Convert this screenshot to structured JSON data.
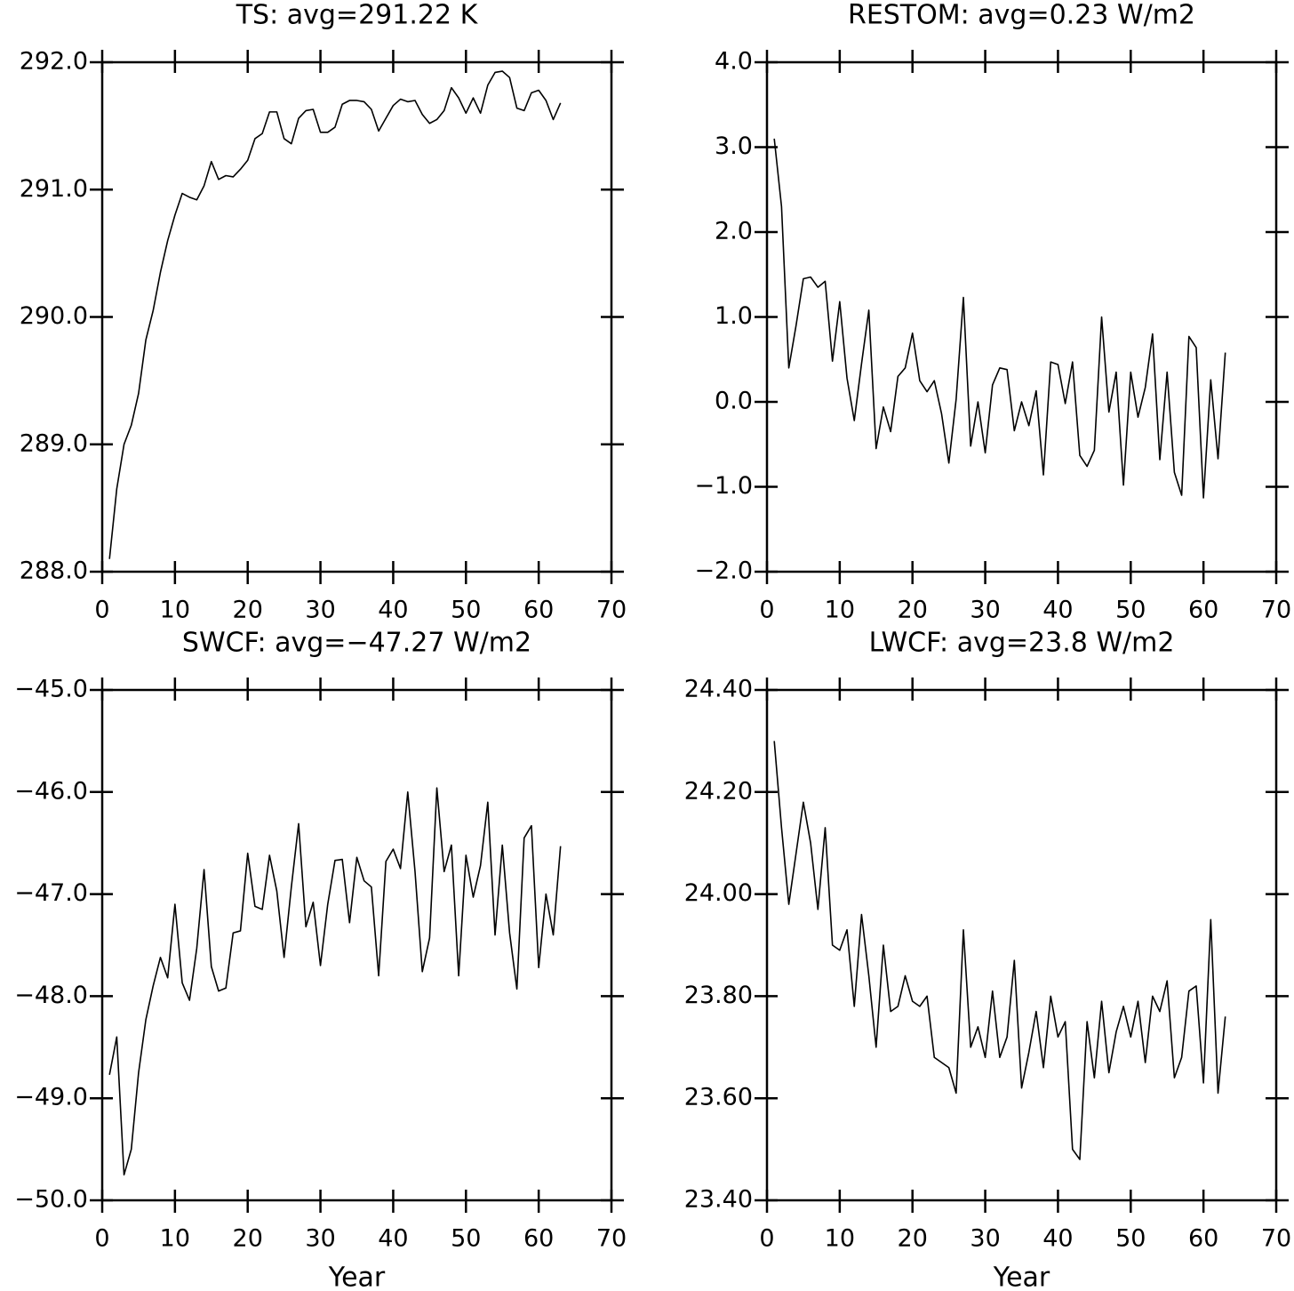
{
  "chart_data": [
    {
      "type": "line",
      "title": "TS: avg=291.22 K",
      "color": "#000000",
      "x": [
        1,
        2,
        3,
        4,
        5,
        6,
        7,
        8,
        9,
        10,
        11,
        12,
        13,
        14,
        15,
        16,
        17,
        18,
        19,
        20,
        21,
        22,
        23,
        24,
        25,
        26,
        27,
        28,
        29,
        30,
        31,
        32,
        33,
        34,
        35,
        36,
        37,
        38,
        39,
        40,
        41,
        42,
        43,
        44,
        45,
        46,
        47,
        48,
        49,
        50,
        51,
        52,
        53,
        54,
        55,
        56,
        57,
        58,
        59,
        60,
        61,
        62,
        63
      ],
      "values": [
        288.1,
        288.65,
        289.0,
        289.15,
        289.4,
        289.82,
        290.05,
        290.35,
        290.6,
        290.8,
        290.97,
        290.94,
        290.92,
        291.03,
        291.22,
        291.08,
        291.11,
        291.1,
        291.16,
        291.23,
        291.4,
        291.44,
        291.61,
        291.61,
        291.4,
        291.36,
        291.56,
        291.62,
        291.63,
        291.45,
        291.45,
        291.49,
        291.67,
        291.7,
        291.7,
        291.69,
        291.63,
        291.46,
        291.56,
        291.66,
        291.71,
        291.69,
        291.7,
        291.59,
        291.52,
        291.55,
        291.62,
        291.8,
        291.72,
        291.6,
        291.72,
        291.6,
        291.82,
        291.92,
        291.93,
        291.88,
        291.64,
        291.62,
        291.76,
        291.78,
        291.7,
        291.55,
        291.68
      ],
      "xlim": [
        0,
        70
      ],
      "xticks": [
        0,
        10,
        20,
        30,
        40,
        50,
        60,
        70
      ],
      "ylim": [
        288,
        292
      ],
      "yticks": [
        {
          "value": 288,
          "label": "288.0"
        },
        {
          "value": 289,
          "label": "289.0"
        },
        {
          "value": 290,
          "label": "290.0"
        },
        {
          "value": 291,
          "label": "291.0"
        },
        {
          "value": 292,
          "label": "292.0"
        }
      ]
    },
    {
      "type": "line",
      "title": "RESTOM: avg=0.23 W/m2",
      "color": "#000000",
      "x": [
        1,
        2,
        3,
        4,
        5,
        6,
        7,
        8,
        9,
        10,
        11,
        12,
        13,
        14,
        15,
        16,
        17,
        18,
        19,
        20,
        21,
        22,
        23,
        24,
        25,
        26,
        27,
        28,
        29,
        30,
        31,
        32,
        33,
        34,
        35,
        36,
        37,
        38,
        39,
        40,
        41,
        42,
        43,
        44,
        45,
        46,
        47,
        48,
        49,
        50,
        51,
        52,
        53,
        54,
        55,
        56,
        57,
        58,
        59,
        60,
        61,
        62,
        63
      ],
      "values": [
        3.1,
        2.3,
        0.4,
        0.9,
        1.45,
        1.47,
        1.35,
        1.42,
        0.48,
        1.18,
        0.28,
        -0.22,
        0.45,
        1.08,
        -0.55,
        -0.06,
        -0.35,
        0.3,
        0.4,
        0.81,
        0.25,
        0.12,
        0.25,
        -0.14,
        -0.72,
        0.03,
        1.23,
        -0.52,
        0.0,
        -0.6,
        0.2,
        0.4,
        0.38,
        -0.34,
        0.0,
        -0.28,
        0.13,
        -0.86,
        0.47,
        0.44,
        -0.02,
        0.47,
        -0.63,
        -0.76,
        -0.57,
        1.0,
        -0.12,
        0.35,
        -0.98,
        0.35,
        -0.18,
        0.17,
        0.8,
        -0.68,
        0.35,
        -0.83,
        -1.1,
        0.77,
        0.64,
        -1.13,
        0.26,
        -0.67,
        0.58
      ],
      "xlim": [
        0,
        70
      ],
      "xticks": [
        0,
        10,
        20,
        30,
        40,
        50,
        60,
        70
      ],
      "ylim": [
        -2,
        4
      ],
      "yticks": [
        {
          "value": -2,
          "label": "−2.0"
        },
        {
          "value": -1,
          "label": "−1.0"
        },
        {
          "value": 0,
          "label": "0.0"
        },
        {
          "value": 1,
          "label": "1.0"
        },
        {
          "value": 2,
          "label": "2.0"
        },
        {
          "value": 3,
          "label": "3.0"
        },
        {
          "value": 4,
          "label": "4.0"
        }
      ]
    },
    {
      "type": "line",
      "title": "SWCF: avg=−47.27 W/m2",
      "xlabel": "Year",
      "color": "#000000",
      "x": [
        1,
        2,
        3,
        4,
        5,
        6,
        7,
        8,
        9,
        10,
        11,
        12,
        13,
        14,
        15,
        16,
        17,
        18,
        19,
        20,
        21,
        22,
        23,
        24,
        25,
        26,
        27,
        28,
        29,
        30,
        31,
        32,
        33,
        34,
        35,
        36,
        37,
        38,
        39,
        40,
        41,
        42,
        43,
        44,
        45,
        46,
        47,
        48,
        49,
        50,
        51,
        52,
        53,
        54,
        55,
        56,
        57,
        58,
        59,
        60,
        61,
        62,
        63
      ],
      "values": [
        -48.77,
        -48.4,
        -49.75,
        -49.5,
        -48.75,
        -48.23,
        -47.9,
        -47.62,
        -47.82,
        -47.1,
        -47.87,
        -48.04,
        -47.53,
        -46.76,
        -47.71,
        -47.95,
        -47.92,
        -47.38,
        -47.36,
        -46.6,
        -47.12,
        -47.15,
        -46.62,
        -46.97,
        -47.62,
        -46.93,
        -46.31,
        -47.32,
        -47.08,
        -47.7,
        -47.1,
        -46.67,
        -46.66,
        -47.28,
        -46.64,
        -46.87,
        -46.93,
        -47.8,
        -46.68,
        -46.56,
        -46.75,
        -46.0,
        -46.78,
        -47.76,
        -47.43,
        -45.96,
        -46.78,
        -46.52,
        -47.8,
        -46.62,
        -47.03,
        -46.72,
        -46.1,
        -47.4,
        -46.52,
        -47.38,
        -47.93,
        -46.45,
        -46.33,
        -47.72,
        -47.0,
        -47.4,
        -46.53
      ],
      "xlim": [
        0,
        70
      ],
      "xticks": [
        0,
        10,
        20,
        30,
        40,
        50,
        60,
        70
      ],
      "ylim": [
        -50,
        -45
      ],
      "yticks": [
        {
          "value": -50,
          "label": "−50.0"
        },
        {
          "value": -49,
          "label": "−49.0"
        },
        {
          "value": -48,
          "label": "−48.0"
        },
        {
          "value": -47,
          "label": "−47.0"
        },
        {
          "value": -46,
          "label": "−46.0"
        },
        {
          "value": -45,
          "label": "−45.0"
        }
      ]
    },
    {
      "type": "line",
      "title": "LWCF: avg=23.8 W/m2",
      "xlabel": "Year",
      "color": "#000000",
      "x": [
        1,
        2,
        3,
        4,
        5,
        6,
        7,
        8,
        9,
        10,
        11,
        12,
        13,
        14,
        15,
        16,
        17,
        18,
        19,
        20,
        21,
        22,
        23,
        24,
        25,
        26,
        27,
        28,
        29,
        30,
        31,
        32,
        33,
        34,
        35,
        36,
        37,
        38,
        39,
        40,
        41,
        42,
        43,
        44,
        45,
        46,
        47,
        48,
        49,
        50,
        51,
        52,
        53,
        54,
        55,
        56,
        57,
        58,
        59,
        60,
        61,
        62,
        63
      ],
      "values": [
        24.3,
        24.13,
        23.98,
        24.08,
        24.18,
        24.1,
        23.97,
        24.13,
        23.9,
        23.89,
        23.93,
        23.78,
        23.96,
        23.84,
        23.7,
        23.9,
        23.77,
        23.78,
        23.84,
        23.79,
        23.78,
        23.8,
        23.68,
        23.67,
        23.66,
        23.61,
        23.93,
        23.7,
        23.74,
        23.68,
        23.81,
        23.68,
        23.72,
        23.87,
        23.62,
        23.69,
        23.77,
        23.66,
        23.8,
        23.72,
        23.75,
        23.5,
        23.48,
        23.75,
        23.64,
        23.79,
        23.65,
        23.73,
        23.78,
        23.72,
        23.79,
        23.67,
        23.8,
        23.77,
        23.83,
        23.64,
        23.68,
        23.81,
        23.82,
        23.63,
        23.95,
        23.61,
        23.76
      ],
      "xlim": [
        0,
        70
      ],
      "xticks": [
        0,
        10,
        20,
        30,
        40,
        50,
        60,
        70
      ],
      "ylim": [
        23.4,
        24.4
      ],
      "yticks": [
        {
          "value": 23.4,
          "label": "23.40"
        },
        {
          "value": 23.6,
          "label": "23.60"
        },
        {
          "value": 23.8,
          "label": "23.80"
        },
        {
          "value": 24.0,
          "label": "24.00"
        },
        {
          "value": 24.2,
          "label": "24.20"
        },
        {
          "value": 24.4,
          "label": "24.40"
        }
      ]
    }
  ]
}
